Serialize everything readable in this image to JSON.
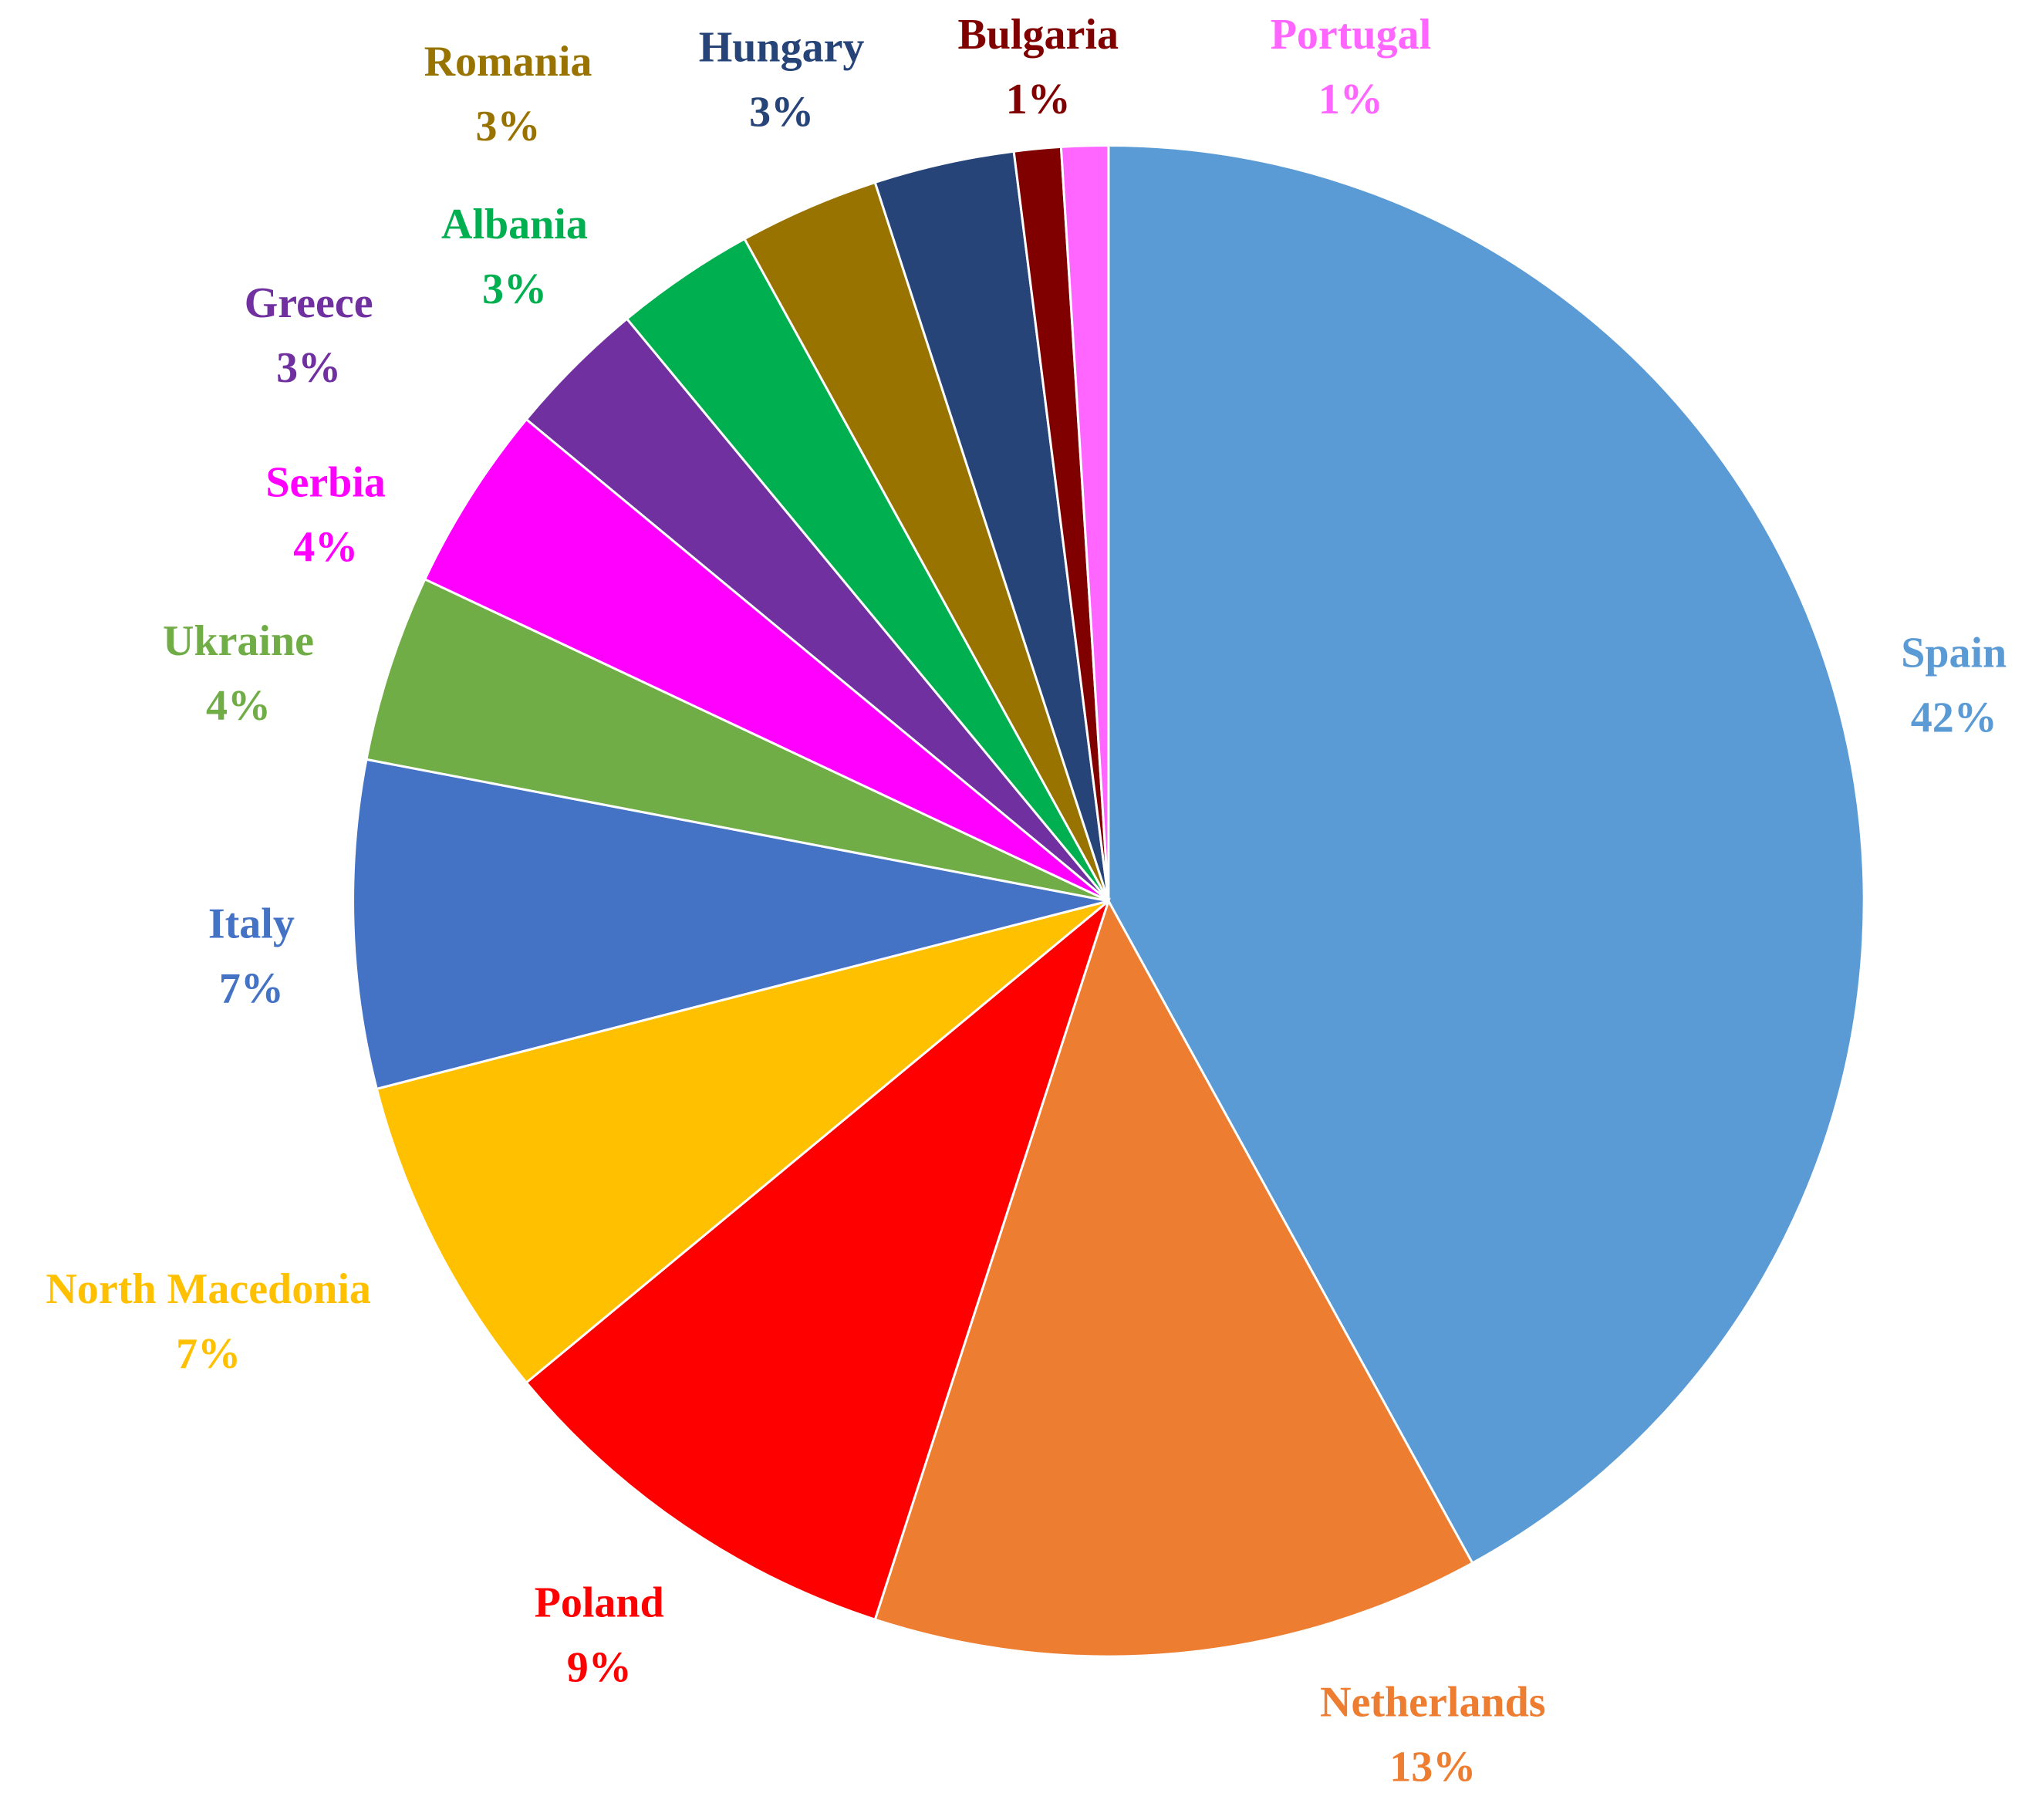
{
  "chart_data": {
    "type": "pie",
    "categories": [
      "Spain",
      "Netherlands",
      "Poland",
      "North Macedonia",
      "Italy",
      "Ukraine",
      "Serbia",
      "Greece",
      "Albania",
      "Romania",
      "Hungary",
      "Bulgaria",
      "Portugal"
    ],
    "values": [
      42,
      13,
      9,
      7,
      7,
      4,
      4,
      3,
      3,
      3,
      3,
      1,
      1
    ],
    "value_labels": [
      "42%",
      "13%",
      "9%",
      "7%",
      "7%",
      "4%",
      "4%",
      "3%",
      "3%",
      "3%",
      "3%",
      "1%",
      "1%"
    ],
    "colors": [
      "#5b9bd5",
      "#ed7d31",
      "#ff0000",
      "#ffc000",
      "#4472c4",
      "#70ad47",
      "#ff00ff",
      "#7030a0",
      "#00b050",
      "#997300",
      "#264478",
      "#800000",
      "#ff66ff"
    ]
  }
}
